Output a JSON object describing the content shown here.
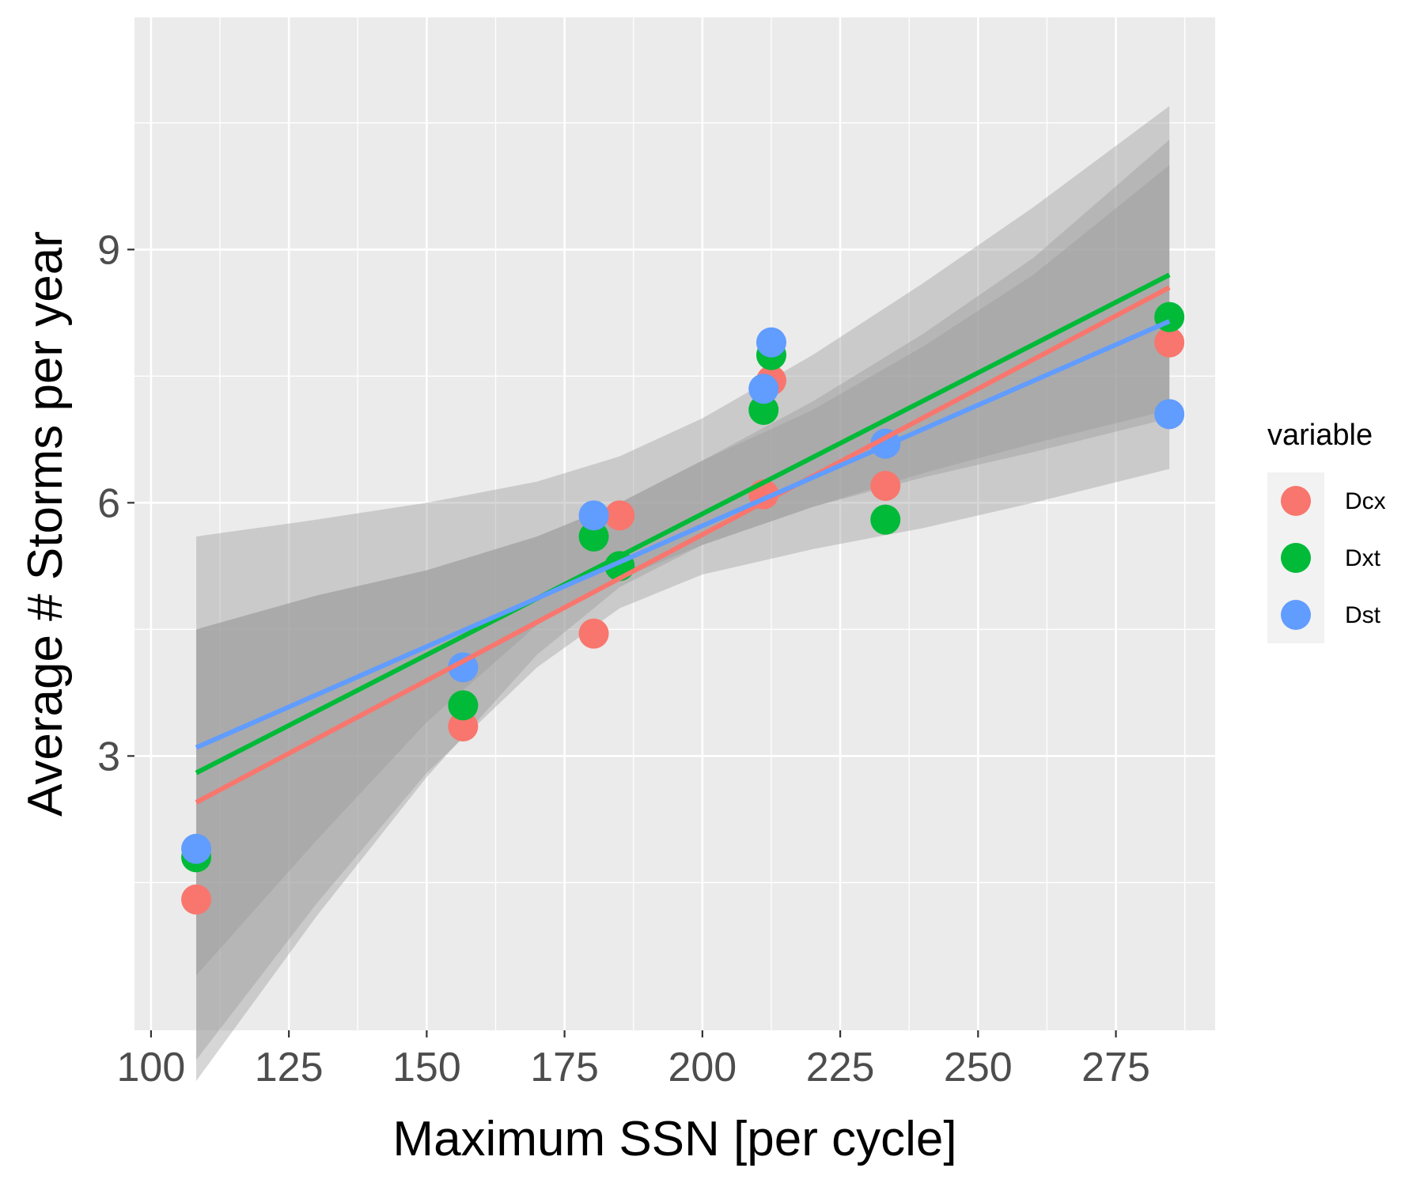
{
  "chart_data": {
    "type": "scatter",
    "title": "",
    "xlabel": "Maximum SSN [per cycle]",
    "ylabel": "Average # Storms per year",
    "xlim": [
      97,
      293
    ],
    "ylim": [
      -0.25,
      11.75
    ],
    "x_ticks": [
      100,
      125,
      150,
      175,
      200,
      225,
      250,
      275
    ],
    "x_tick_labels": [
      "100",
      "125",
      "150",
      "175",
      "200",
      "225",
      "250",
      "275"
    ],
    "y_ticks": [
      3,
      6,
      9
    ],
    "y_tick_labels": [
      "3",
      "6",
      "9"
    ],
    "grid": true,
    "legend": {
      "title": "variable",
      "position": "right"
    },
    "series": [
      {
        "name": "Dcx",
        "color": "#F8766D",
        "points": [
          [
            108.2,
            1.3
          ],
          [
            156.6,
            3.35
          ],
          [
            180.3,
            4.45
          ],
          [
            185.0,
            5.85
          ],
          [
            211.1,
            6.1
          ],
          [
            212.5,
            7.45
          ],
          [
            233.2,
            6.2
          ],
          [
            284.7,
            7.9
          ]
        ],
        "fit": {
          "x": [
            108.2,
            284.7
          ],
          "y": [
            2.45,
            8.55
          ]
        },
        "band": {
          "x": [
            108.2,
            130,
            150,
            170,
            185,
            200,
            220,
            240,
            260,
            284.7
          ],
          "lower": [
            0.4,
            2.0,
            3.4,
            4.55,
            5.1,
            5.5,
            5.95,
            6.35,
            6.7,
            7.1
          ],
          "upper": [
            4.5,
            4.9,
            5.2,
            5.6,
            6.0,
            6.5,
            7.1,
            7.85,
            8.7,
            10.0
          ]
        }
      },
      {
        "name": "Dxt",
        "color": "#00BA38",
        "points": [
          [
            108.2,
            1.8
          ],
          [
            156.6,
            3.6
          ],
          [
            180.3,
            5.6
          ],
          [
            185.0,
            5.25
          ],
          [
            211.1,
            7.1
          ],
          [
            212.5,
            7.75
          ],
          [
            233.2,
            5.8
          ],
          [
            284.7,
            8.2
          ]
        ],
        "fit": {
          "x": [
            108.2,
            284.7
          ],
          "y": [
            2.8,
            8.7
          ]
        },
        "band": {
          "x": [
            108.2,
            130,
            150,
            170,
            185,
            200,
            220,
            240,
            260,
            284.7
          ],
          "lower": [
            -0.85,
            1.1,
            2.75,
            4.2,
            5.0,
            5.5,
            5.95,
            6.3,
            6.6,
            7.0
          ],
          "upper": [
            5.6,
            5.8,
            6.0,
            6.25,
            6.55,
            7.0,
            7.75,
            8.6,
            9.5,
            10.7
          ]
        }
      },
      {
        "name": "Dst",
        "color": "#619CFF",
        "points": [
          [
            108.2,
            1.9
          ],
          [
            156.6,
            4.05
          ],
          [
            180.3,
            5.85
          ],
          [
            211.1,
            7.35
          ],
          [
            212.5,
            7.9
          ],
          [
            233.2,
            6.7
          ],
          [
            284.7,
            7.05
          ]
        ],
        "fit": {
          "x": [
            108.2,
            284.7
          ],
          "y": [
            3.1,
            8.15
          ]
        },
        "band": {
          "x": [
            108.2,
            130,
            150,
            170,
            185,
            200,
            220,
            240,
            260,
            284.7
          ],
          "lower": [
            -0.6,
            1.25,
            2.8,
            4.05,
            4.75,
            5.15,
            5.45,
            5.7,
            6.0,
            6.4
          ],
          "upper": [
            4.5,
            4.9,
            5.2,
            5.6,
            6.0,
            6.5,
            7.2,
            8.0,
            8.9,
            10.3
          ]
        }
      }
    ]
  }
}
